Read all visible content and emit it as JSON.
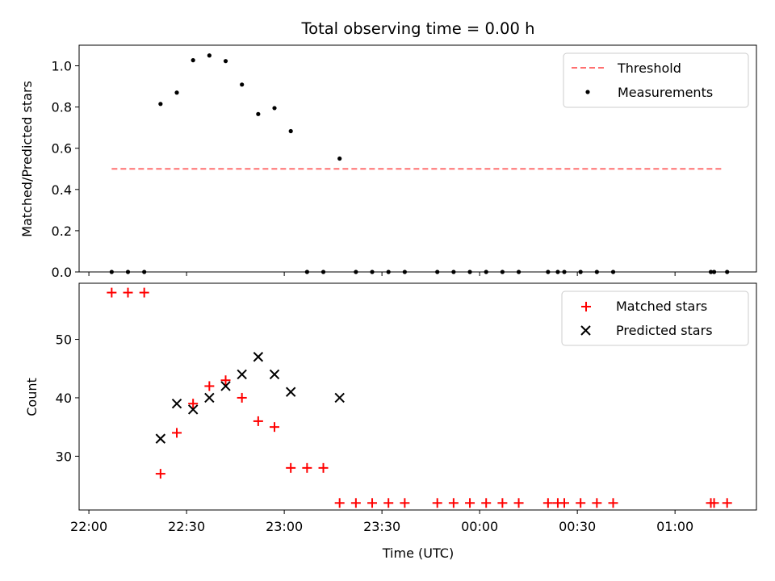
{
  "chart_data": [
    {
      "type": "scatter",
      "title": "Total observing time = 0.00 h",
      "xlabel": "",
      "ylabel": "Matched/Predicted stars",
      "ylim": [
        0,
        1.1
      ],
      "yticks": [
        "0.0",
        "0.2",
        "0.4",
        "0.6",
        "0.8",
        "1.0"
      ],
      "ytick_values": [
        0.0,
        0.2,
        0.4,
        0.6,
        0.8,
        1.0
      ],
      "legend_position": "top-right",
      "grid": false,
      "threshold": {
        "name": "Threshold",
        "value": 0.5,
        "x_start": "22:07",
        "x_end": "01:15",
        "color": "#ff7070"
      },
      "series": [
        {
          "name": "Measurements",
          "color": "#000000",
          "x": [
            "22:07",
            "22:12",
            "22:17",
            "22:22",
            "22:27",
            "22:32",
            "22:37",
            "22:42",
            "22:47",
            "22:52",
            "22:57",
            "23:02",
            "23:07",
            "23:12",
            "23:17",
            "23:22",
            "23:27",
            "23:32",
            "23:37",
            "23:47",
            "23:52",
            "23:57",
            "00:02",
            "00:07",
            "00:12",
            "00:21",
            "00:24",
            "00:26",
            "00:31",
            "00:36",
            "00:41",
            "01:11",
            "01:12",
            "01:16"
          ],
          "y": [
            0,
            0,
            0,
            0.815,
            0.87,
            1.027,
            1.05,
            1.023,
            0.909,
            0.766,
            0.795,
            0.683,
            0,
            0,
            0.55,
            0,
            0,
            0,
            0,
            0,
            0,
            0,
            0,
            0,
            0,
            0,
            0,
            0,
            0,
            0,
            0,
            0,
            0,
            0
          ]
        }
      ]
    },
    {
      "type": "scatter",
      "title": "",
      "xlabel": "Time (UTC)",
      "ylabel": "Count",
      "xlim": [
        "21:57",
        "01:25"
      ],
      "ylim": [
        20.8,
        59.6
      ],
      "yticks": [
        "30",
        "40",
        "50"
      ],
      "ytick_values": [
        30,
        40,
        50
      ],
      "xticks": [
        "22:00",
        "22:30",
        "23:00",
        "23:30",
        "00:00",
        "00:30",
        "01:00"
      ],
      "legend_position": "top-right",
      "grid": false,
      "series": [
        {
          "name": "Matched stars",
          "marker": "plus",
          "color": "#ff0000",
          "x": [
            "22:07",
            "22:12",
            "22:17",
            "22:22",
            "22:27",
            "22:32",
            "22:37",
            "22:42",
            "22:47",
            "22:52",
            "22:57",
            "23:02",
            "23:07",
            "23:12",
            "23:17",
            "23:22",
            "23:27",
            "23:32",
            "23:37",
            "23:47",
            "23:52",
            "23:57",
            "00:02",
            "00:07",
            "00:12",
            "00:21",
            "00:24",
            "00:26",
            "00:31",
            "00:36",
            "00:41",
            "01:11",
            "01:12",
            "01:16"
          ],
          "y": [
            58,
            58,
            58,
            27,
            34,
            39,
            42,
            43,
            40,
            36,
            35,
            28,
            28,
            28,
            22,
            22,
            22,
            22,
            22,
            22,
            22,
            22,
            22,
            22,
            22,
            22,
            22,
            22,
            22,
            22,
            22,
            22,
            22,
            22
          ]
        },
        {
          "name": "Predicted stars",
          "marker": "x",
          "color": "#000000",
          "x": [
            "22:22",
            "22:27",
            "22:32",
            "22:37",
            "22:42",
            "22:47",
            "22:52",
            "22:57",
            "23:02",
            "23:17"
          ],
          "y": [
            33,
            39,
            38,
            40,
            42,
            44,
            47,
            44,
            41,
            40
          ]
        }
      ]
    }
  ]
}
